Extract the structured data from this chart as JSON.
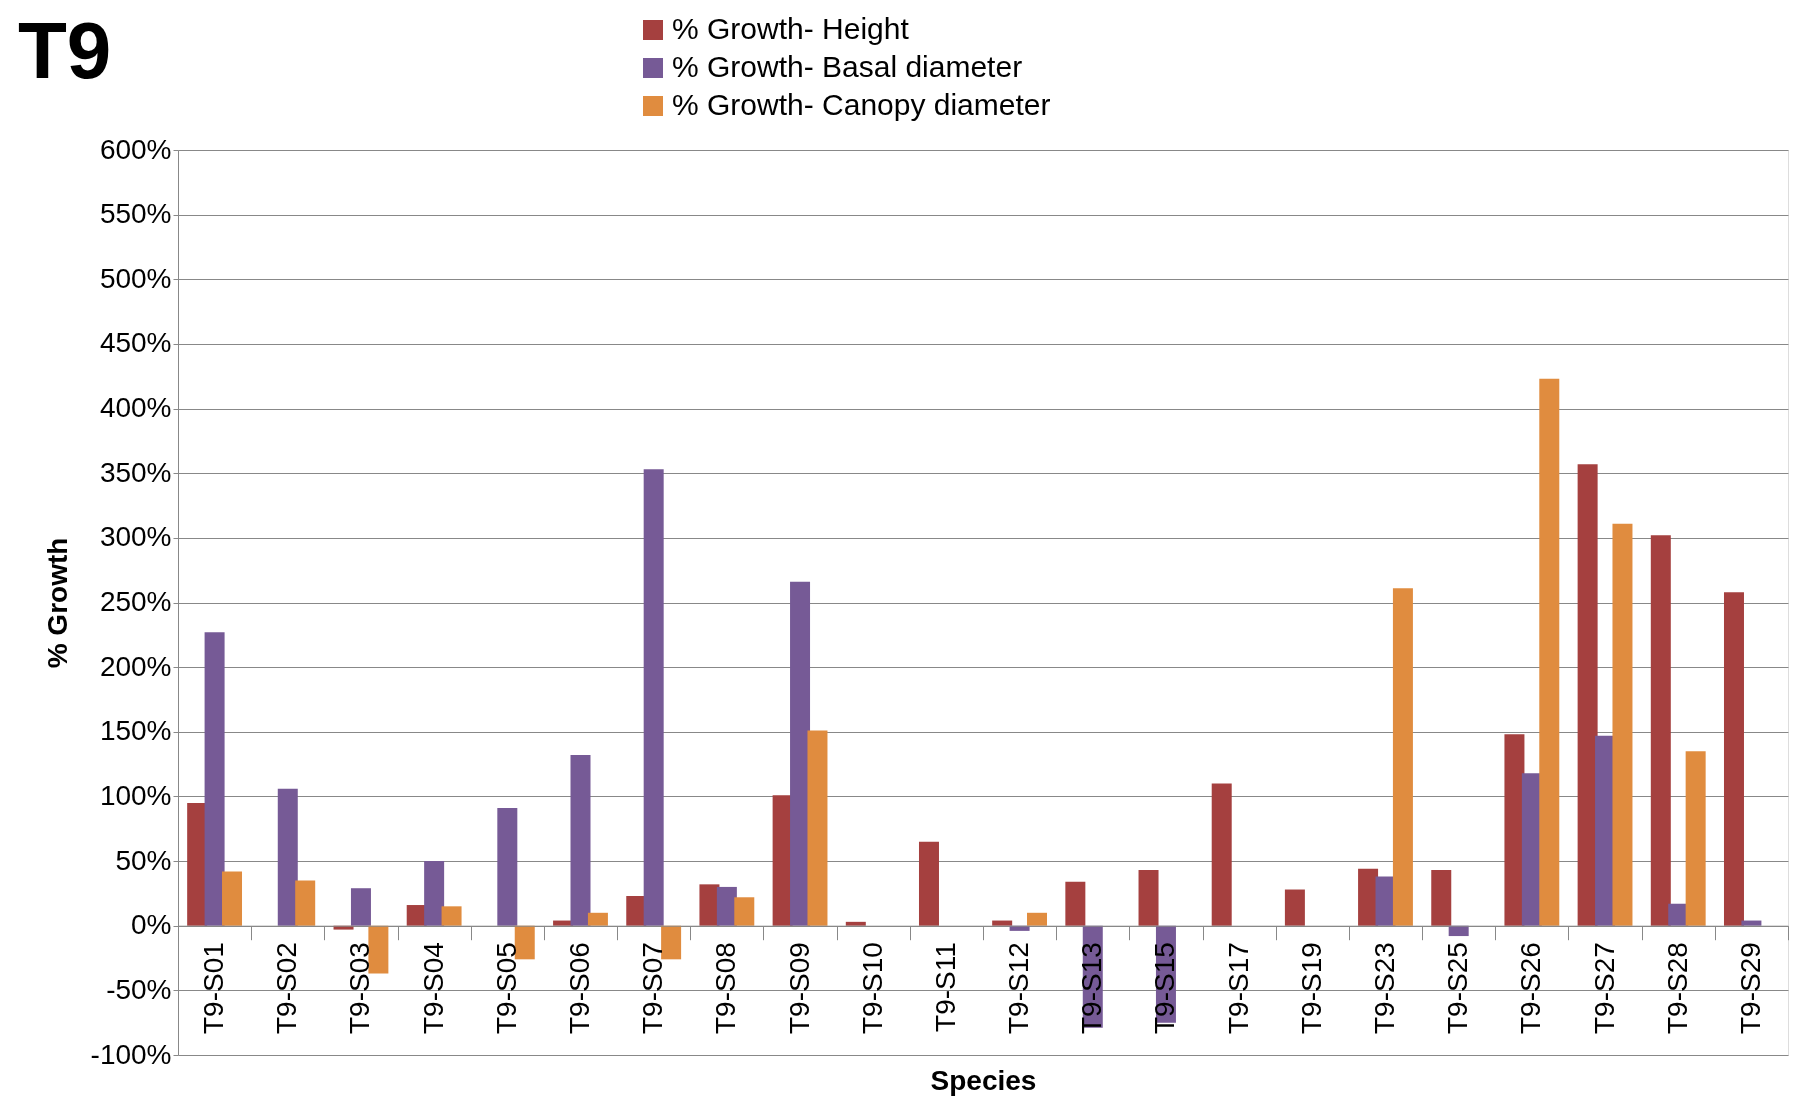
{
  "chart_data": {
    "type": "bar",
    "title": "T9",
    "xlabel": "Species",
    "ylabel": "% Growth",
    "categories": [
      "T9-S01",
      "T9-S02",
      "T9-S03",
      "T9-S04",
      "T9-S05",
      "T9-S06",
      "T9-S07",
      "T9-S08",
      "T9-S09",
      "T9-S10",
      "T9-S11",
      "T9-S12",
      "T9-S13",
      "T9-S15",
      "T9-S17",
      "T9-S19",
      "T9-S23",
      "T9-S25",
      "T9-S26",
      "T9-S27",
      "T9-S28",
      "T9-S29"
    ],
    "series": [
      {
        "name": "% Growth- Height",
        "color": "#a5403f",
        "values": [
          95,
          null,
          -3,
          16,
          null,
          4,
          23,
          32,
          101,
          3,
          65,
          4,
          34,
          43,
          110,
          28,
          44,
          43,
          148,
          357,
          302,
          258
        ]
      },
      {
        "name": "% Growth- Basal diameter",
        "color": "#765a96",
        "values": [
          227,
          106,
          29,
          50,
          91,
          132,
          353,
          30,
          266,
          null,
          null,
          -4,
          -79,
          -75,
          null,
          null,
          38,
          -8,
          118,
          147,
          17,
          4
        ]
      },
      {
        "name": "% Growth- Canopy diameter",
        "color": "#e08c3f",
        "values": [
          42,
          35,
          -37,
          15,
          -26,
          10,
          -26,
          22,
          151,
          null,
          null,
          10,
          null,
          null,
          null,
          null,
          261,
          null,
          423,
          311,
          135,
          null
        ]
      }
    ],
    "ylim": [
      -100,
      600
    ],
    "yticks": [
      {
        "value": -100,
        "label": "-100%"
      },
      {
        "value": -50,
        "label": "-50%"
      },
      {
        "value": 0,
        "label": "0%"
      },
      {
        "value": 50,
        "label": "50%"
      },
      {
        "value": 100,
        "label": "100%"
      },
      {
        "value": 150,
        "label": "150%"
      },
      {
        "value": 200,
        "label": "200%"
      },
      {
        "value": 250,
        "label": "250%"
      },
      {
        "value": 300,
        "label": "300%"
      },
      {
        "value": 350,
        "label": "350%"
      },
      {
        "value": 400,
        "label": "400%"
      },
      {
        "value": 450,
        "label": "450%"
      },
      {
        "value": 500,
        "label": "500%"
      },
      {
        "value": 550,
        "label": "550%"
      },
      {
        "value": 600,
        "label": "600%"
      }
    ],
    "grid": "y",
    "legend": "top"
  }
}
